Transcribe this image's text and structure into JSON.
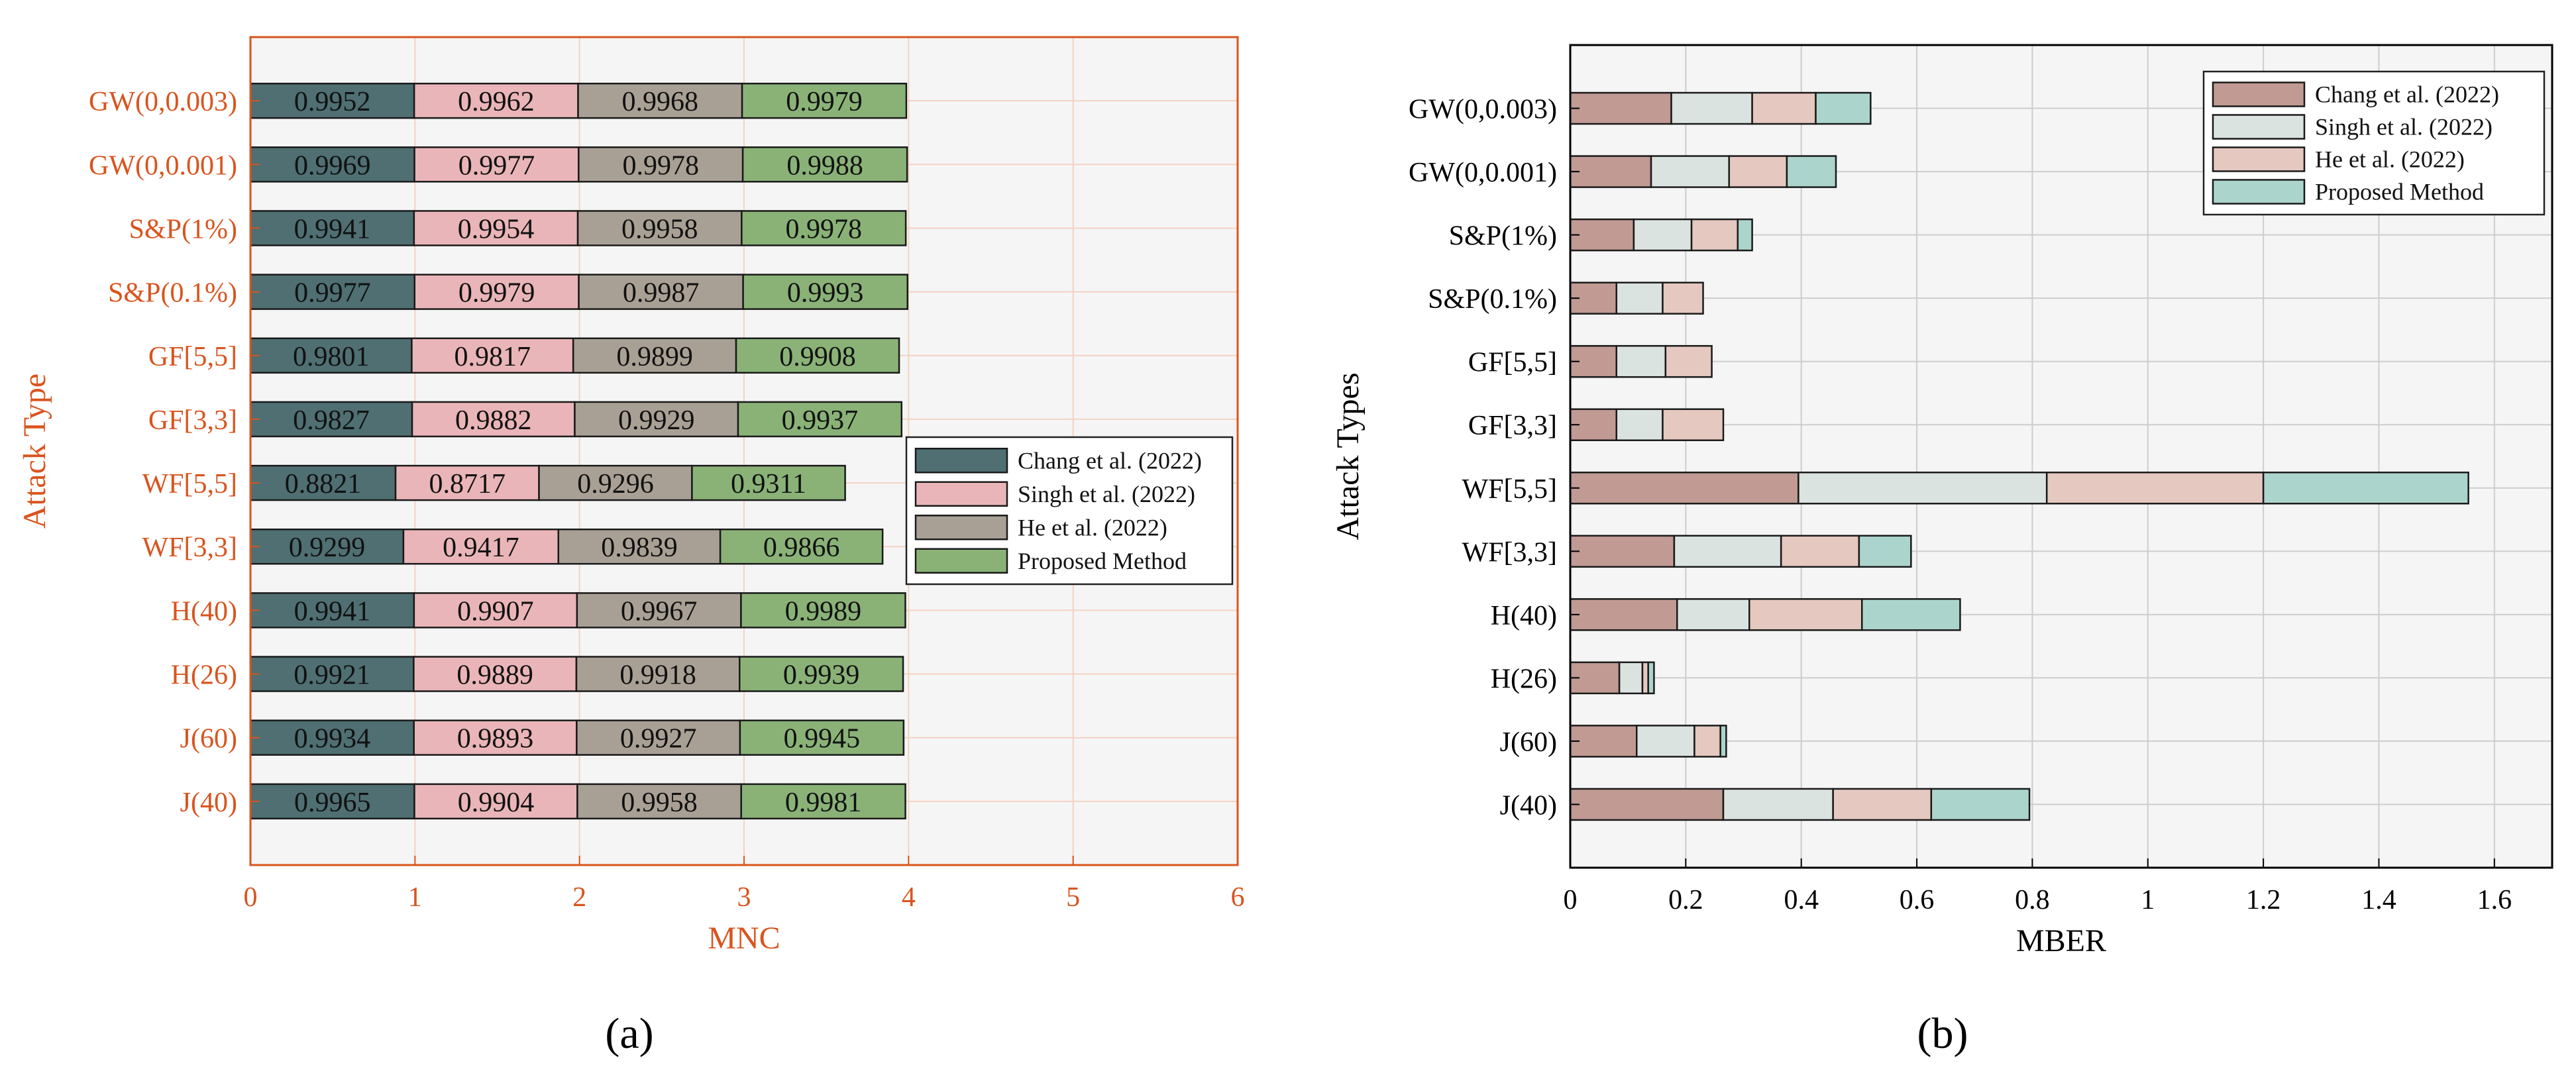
{
  "panel_labels": [
    "(a)",
    "(b)"
  ],
  "chart_data": [
    {
      "type": "bar",
      "stacked": true,
      "orientation": "horizontal",
      "xlabel": "MNC",
      "ylabel": "Attack Type",
      "xlim": [
        0,
        6
      ],
      "xticks": [
        "0",
        "1",
        "2",
        "3",
        "4",
        "5",
        "6"
      ],
      "grid": true,
      "legend_position": "center-right",
      "colors": {
        "axis": "#d9541e",
        "series": [
          "#4f6f72",
          "#eab5b8",
          "#a9a095",
          "#8ab277"
        ]
      },
      "categories": [
        "GW(0,0.003)",
        "GW(0,0.001)",
        "S&P(1%)",
        "S&P(0.1%)",
        "GF[5,5]",
        "GF[3,3]",
        "WF[5,5]",
        "WF[3,3]",
        "H(40)",
        "H(26)",
        "J(60)",
        "J(40)"
      ],
      "series": [
        {
          "name": "Chang et al. (2022)",
          "values": [
            0.9952,
            0.9969,
            0.9941,
            0.9977,
            0.9801,
            0.9827,
            0.8821,
            0.9299,
            0.9941,
            0.9921,
            0.9934,
            0.9965
          ],
          "labels": [
            "0.9952",
            "0.9969",
            "0.9941",
            "0.9977",
            "0.9801",
            "0.9827",
            "0.8821",
            "0.9299",
            "0.9941",
            "0.9921",
            "0.9934",
            "0.9965"
          ]
        },
        {
          "name": "Singh et al. (2022)",
          "values": [
            0.9962,
            0.9977,
            0.9954,
            0.9979,
            0.9817,
            0.9882,
            0.8717,
            0.9417,
            0.9907,
            0.9889,
            0.9893,
            0.9904
          ],
          "labels": [
            "0.9962",
            "0.9977",
            "0.9954",
            "0.9979",
            "0.9817",
            "0.9882",
            "0.8717",
            "0.9417",
            "0.9907",
            "0.9889",
            "0.9893",
            "0.9904"
          ]
        },
        {
          "name": "He et al. (2022)",
          "values": [
            0.9968,
            0.9978,
            0.9958,
            0.9987,
            0.9899,
            0.9929,
            0.9296,
            0.9839,
            0.9967,
            0.9918,
            0.9927,
            0.9958
          ],
          "labels": [
            "0.9968",
            "0.9978",
            "0.9958",
            "0.9987",
            "0.9899",
            "0.9929",
            "0.9296",
            "0.9839",
            "0.9967",
            "0.9918",
            "0.9927",
            "0.9958"
          ]
        },
        {
          "name": "Proposed Method",
          "values": [
            0.9979,
            0.9988,
            0.9978,
            0.9993,
            0.9908,
            0.9937,
            0.9311,
            0.9866,
            0.9989,
            0.9939,
            0.9945,
            0.9981
          ],
          "labels": [
            "0.9979",
            "0.9988",
            "0.9978",
            "0.9993",
            "0.9908",
            "0.9937",
            "0.9311",
            "0.9866",
            "0.9989",
            "0.9939",
            "0.9945",
            "0.9981"
          ]
        }
      ]
    },
    {
      "type": "bar",
      "stacked": true,
      "orientation": "horizontal",
      "xlabel": "MBER",
      "ylabel": "Attack Types",
      "xlim": [
        0,
        1.7
      ],
      "xticks": [
        "0",
        "0.2",
        "0.4",
        "0.6",
        "0.8",
        "1",
        "1.2",
        "1.4",
        "1.6"
      ],
      "grid": true,
      "legend_position": "top-right",
      "colors": {
        "axis": "#000000",
        "series": [
          "#c09a93",
          "#dbe3e1",
          "#e5c8bf",
          "#abd5cc"
        ]
      },
      "categories": [
        "GW(0,0.003)",
        "GW(0,0.001)",
        "S&P(1%)",
        "S&P(0.1%)",
        "GF[5,5]",
        "GF[3,3]",
        "WF[5,5]",
        "WF[3,3]",
        "H(40)",
        "H(26)",
        "J(60)",
        "J(40)"
      ],
      "series": [
        {
          "name": "Chang et al. (2022)",
          "values": [
            0.175,
            0.14,
            0.11,
            0.08,
            0.08,
            0.08,
            0.395,
            0.18,
            0.185,
            0.085,
            0.115,
            0.265
          ]
        },
        {
          "name": "Singh et al. (2022)",
          "values": [
            0.14,
            0.135,
            0.1,
            0.08,
            0.085,
            0.08,
            0.43,
            0.185,
            0.125,
            0.04,
            0.1,
            0.19
          ]
        },
        {
          "name": "He et al. (2022)",
          "values": [
            0.11,
            0.1,
            0.08,
            0.07,
            0.08,
            0.105,
            0.375,
            0.135,
            0.195,
            0.01,
            0.045,
            0.17
          ]
        },
        {
          "name": "Proposed Method",
          "values": [
            0.095,
            0.085,
            0.025,
            0.0,
            0.0,
            0.0,
            0.355,
            0.09,
            0.17,
            0.01,
            0.01,
            0.17
          ]
        }
      ]
    }
  ]
}
